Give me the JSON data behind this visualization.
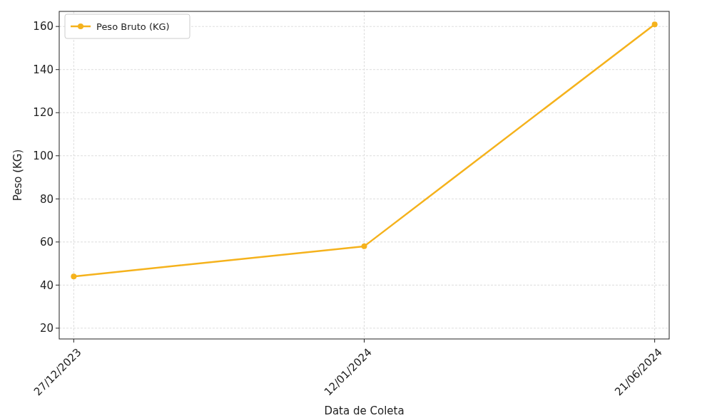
{
  "chart_data": {
    "type": "line",
    "xlabel": "Data de Coleta",
    "ylabel": "Peso (KG)",
    "categories": [
      "27/12/2023",
      "12/01/2024",
      "21/06/2024"
    ],
    "series": [
      {
        "name": "Peso Bruto (KG)",
        "color": "#f5b21c",
        "values": [
          44,
          58,
          161
        ]
      }
    ],
    "ylim": [
      15,
      167
    ],
    "yticks": [
      20,
      40,
      60,
      80,
      100,
      120,
      140,
      160
    ],
    "grid": true,
    "legend": "top left",
    "marker": "circle",
    "line_style": "solid"
  }
}
